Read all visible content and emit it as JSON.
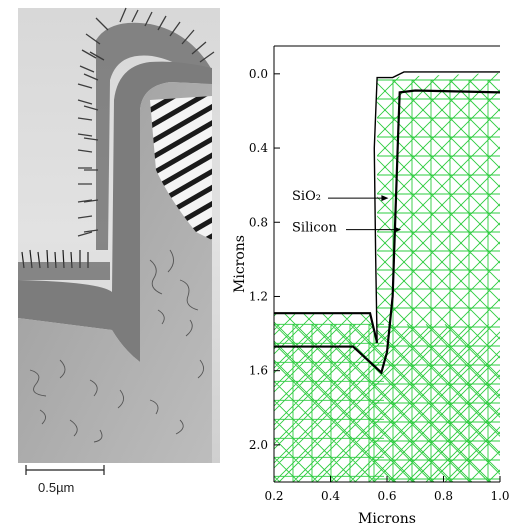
{
  "micrograph": {
    "scale_bar_label": "0.5µm"
  },
  "plot": {
    "xlabel": "Microns",
    "ylabel": "Microns",
    "x_ticks": [
      "0.2",
      "0.4",
      "0.6",
      "0.8",
      "1.0"
    ],
    "y_ticks": [
      "0.0",
      "0.4",
      "0.8",
      "1.2",
      "1.6",
      "2.0"
    ],
    "x_range": [
      0.2,
      1.0
    ],
    "y_range": [
      2.2,
      -0.15
    ],
    "annotations": [
      {
        "text": "SiO₂",
        "target": [
          0.605,
          0.67
        ]
      },
      {
        "text": "Silicon",
        "target": [
          0.65,
          0.84
        ]
      }
    ],
    "mesh_color": "#2ecc40",
    "outline_color": "#000000"
  }
}
